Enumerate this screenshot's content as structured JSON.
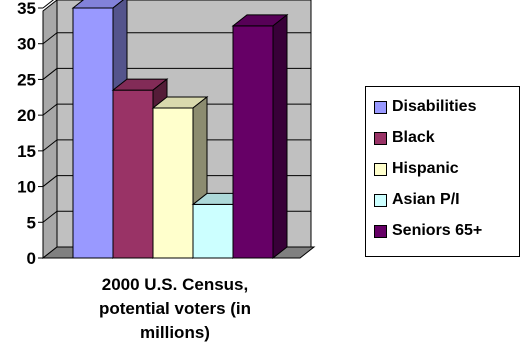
{
  "chart_data": {
    "type": "bar",
    "style": "3d-clustered",
    "categories": [
      "2000 U.S. Census, potential voters (in millions)"
    ],
    "xlabel_lines": [
      "2000 U.S. Census,",
      "potential voters (in",
      "millions)"
    ],
    "series": [
      {
        "name": "Disabilities",
        "values": [
          35
        ],
        "color": "#9999FF"
      },
      {
        "name": "Black",
        "values": [
          23.5
        ],
        "color": "#993366"
      },
      {
        "name": "Hispanic",
        "values": [
          21
        ],
        "color": "#FFFFCC"
      },
      {
        "name": "Asian P/I",
        "values": [
          7.5
        ],
        "color": "#CCFFFF"
      },
      {
        "name": "Seniors 65+",
        "values": [
          32.5
        ],
        "color": "#660066"
      }
    ],
    "ylim": [
      0,
      35
    ],
    "yticks": [
      "0",
      "5",
      "10",
      "15",
      "20",
      "25",
      "30",
      "35"
    ],
    "grid": true,
    "wall_color": "#C0C0C0",
    "legend_position": "right"
  }
}
